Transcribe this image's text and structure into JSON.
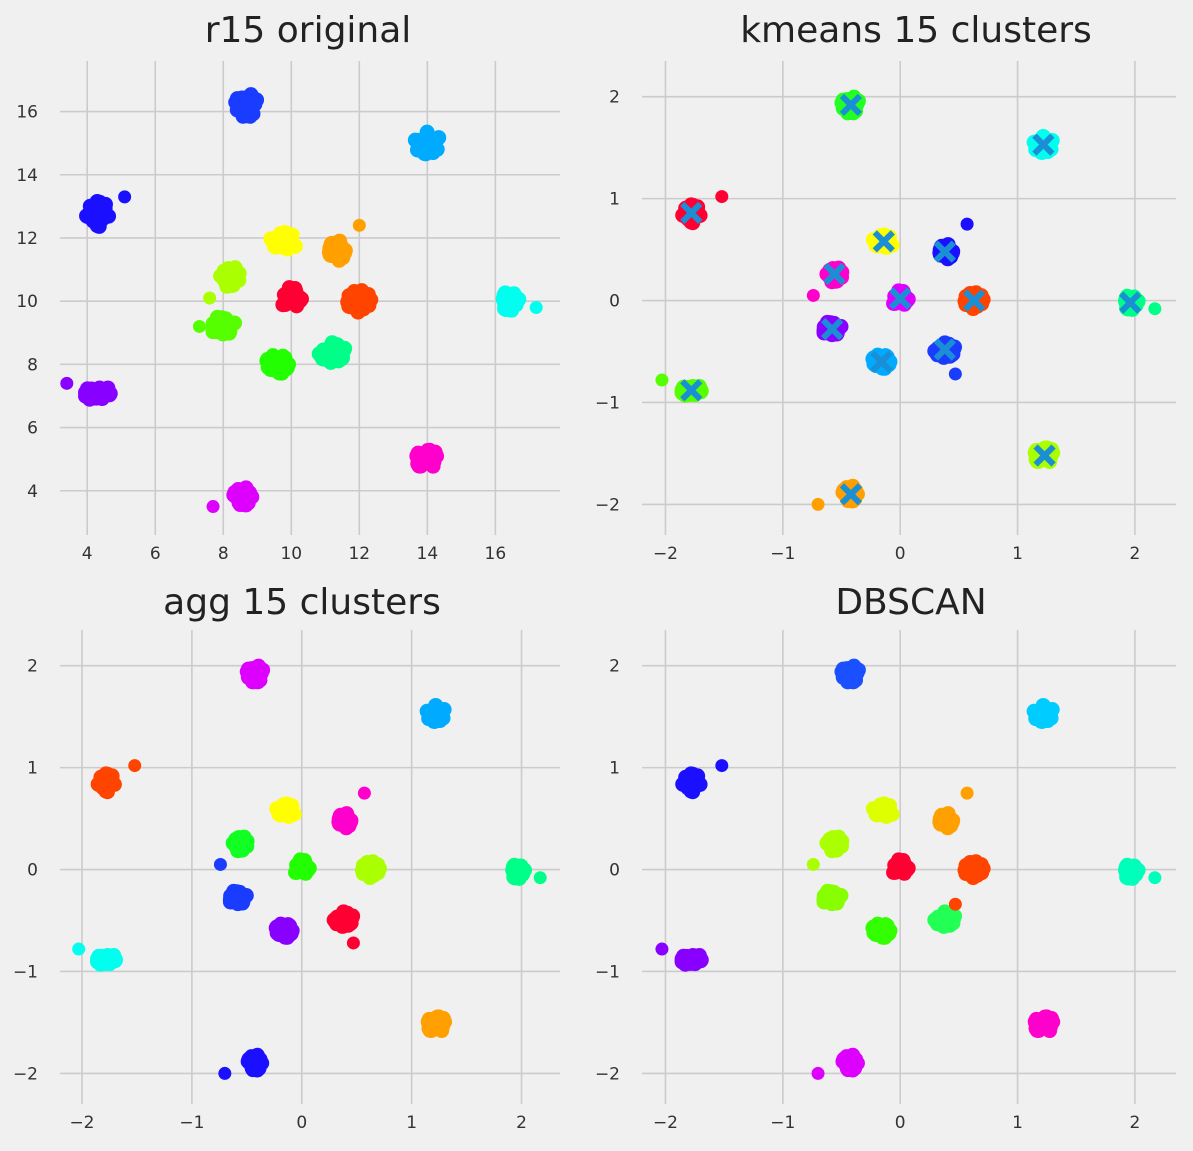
{
  "chart_data": [
    {
      "type": "scatter",
      "title": "r15 original",
      "xlabel": "",
      "ylabel": "",
      "xlim": [
        3.2,
        17.9
      ],
      "ylim": [
        2.6,
        17.6
      ],
      "xticks": [
        4,
        6,
        8,
        10,
        12,
        14,
        16
      ],
      "yticks": [
        4,
        6,
        8,
        10,
        12,
        14,
        16
      ],
      "grid": true,
      "clusters": [
        {
          "color": "#1a3cff",
          "center": [
            8.7,
            16.2
          ],
          "spread": [
            0.35,
            0.4
          ]
        },
        {
          "color": "#00aaff",
          "center": [
            14.0,
            15.0
          ],
          "spread": [
            0.4,
            0.35
          ]
        },
        {
          "color": "#1a10ff",
          "center": [
            4.3,
            12.8
          ],
          "spread": [
            0.35,
            0.45
          ]
        },
        {
          "color": "#ffff00",
          "center": [
            9.8,
            11.9
          ],
          "spread": [
            0.45,
            0.3
          ]
        },
        {
          "color": "#ffa000",
          "center": [
            11.3,
            11.6
          ],
          "spread": [
            0.3,
            0.35
          ]
        },
        {
          "color": "#aaff00",
          "center": [
            8.2,
            10.8
          ],
          "spread": [
            0.3,
            0.35
          ]
        },
        {
          "color": "#ff0033",
          "center": [
            10.0,
            10.1
          ],
          "spread": [
            0.35,
            0.35
          ]
        },
        {
          "color": "#ff4400",
          "center": [
            12.0,
            10.0
          ],
          "spread": [
            0.35,
            0.35
          ]
        },
        {
          "color": "#00ffee",
          "center": [
            16.4,
            10.0
          ],
          "spread": [
            0.3,
            0.3
          ]
        },
        {
          "color": "#55ff00",
          "center": [
            8.0,
            9.2
          ],
          "spread": [
            0.35,
            0.35
          ]
        },
        {
          "color": "#00ff88",
          "center": [
            11.2,
            8.4
          ],
          "spread": [
            0.4,
            0.35
          ]
        },
        {
          "color": "#22ff00",
          "center": [
            9.6,
            8.0
          ],
          "spread": [
            0.35,
            0.3
          ]
        },
        {
          "color": "#8800ff",
          "center": [
            4.3,
            7.1
          ],
          "spread": [
            0.4,
            0.25
          ]
        },
        {
          "color": "#ff00cc",
          "center": [
            14.0,
            5.0
          ],
          "spread": [
            0.35,
            0.3
          ]
        },
        {
          "color": "#dd00ff",
          "center": [
            8.6,
            3.8
          ],
          "spread": [
            0.3,
            0.3
          ]
        }
      ],
      "outliers": [
        {
          "color": "#1a10ff",
          "x": 5.1,
          "y": 13.3
        },
        {
          "color": "#ffa000",
          "x": 12.0,
          "y": 12.4
        },
        {
          "color": "#55ff00",
          "x": 7.3,
          "y": 9.2
        },
        {
          "color": "#aaff00",
          "x": 7.6,
          "y": 10.1
        },
        {
          "color": "#00ffee",
          "x": 17.2,
          "y": 9.8
        },
        {
          "color": "#8800ff",
          "x": 3.4,
          "y": 7.4
        },
        {
          "color": "#dd00ff",
          "x": 7.7,
          "y": 3.5
        }
      ]
    },
    {
      "type": "scatter",
      "title": "kmeans 15 clusters",
      "xlabel": "",
      "ylabel": "",
      "xlim": [
        -2.2,
        2.35
      ],
      "ylim": [
        -2.3,
        2.35
      ],
      "xticks": [
        -2,
        -1,
        0,
        1,
        2
      ],
      "xtick_labels": [
        "−2",
        "−1",
        "0",
        "1",
        "2"
      ],
      "yticks": [
        -2,
        -1,
        0,
        1,
        2
      ],
      "ytick_labels": [
        "−2",
        "−1",
        "0",
        "1",
        "2"
      ],
      "grid": true,
      "centroid_color": "#1a8fd6",
      "clusters": [
        {
          "color": "#22ff22",
          "center": [
            -0.42,
            1.92
          ],
          "spread": [
            0.08,
            0.09
          ]
        },
        {
          "color": "#00ffee",
          "center": [
            1.22,
            1.53
          ],
          "spread": [
            0.09,
            0.08
          ]
        },
        {
          "color": "#ff0033",
          "center": [
            -1.78,
            0.86
          ],
          "spread": [
            0.08,
            0.1
          ]
        },
        {
          "color": "#ffff00",
          "center": [
            -0.14,
            0.58
          ],
          "spread": [
            0.1,
            0.07
          ]
        },
        {
          "color": "#1a10ff",
          "center": [
            0.38,
            0.48
          ],
          "spread": [
            0.07,
            0.08
          ]
        },
        {
          "color": "#ff00cc",
          "center": [
            -0.56,
            0.26
          ],
          "spread": [
            0.07,
            0.08
          ]
        },
        {
          "color": "#dd00ff",
          "center": [
            0.0,
            0.02
          ],
          "spread": [
            0.08,
            0.08
          ]
        },
        {
          "color": "#ff4400",
          "center": [
            0.63,
            0.0
          ],
          "spread": [
            0.08,
            0.08
          ]
        },
        {
          "color": "#00ff88",
          "center": [
            1.96,
            -0.02
          ],
          "spread": [
            0.07,
            0.07
          ]
        },
        {
          "color": "#8800ff",
          "center": [
            -0.58,
            -0.28
          ],
          "spread": [
            0.08,
            0.08
          ]
        },
        {
          "color": "#1a3cff",
          "center": [
            0.38,
            -0.48
          ],
          "spread": [
            0.09,
            0.08
          ]
        },
        {
          "color": "#00aaff",
          "center": [
            -0.16,
            -0.6
          ],
          "spread": [
            0.08,
            0.07
          ]
        },
        {
          "color": "#55ff00",
          "center": [
            -1.78,
            -0.88
          ],
          "spread": [
            0.09,
            0.06
          ]
        },
        {
          "color": "#aaff00",
          "center": [
            1.23,
            -1.52
          ],
          "spread": [
            0.09,
            0.08
          ]
        },
        {
          "color": "#ffa000",
          "center": [
            -0.42,
            -1.9
          ],
          "spread": [
            0.07,
            0.08
          ]
        }
      ],
      "outliers": [
        {
          "color": "#ff0033",
          "x": -1.52,
          "y": 1.02
        },
        {
          "color": "#1a10ff",
          "x": 0.57,
          "y": 0.75
        },
        {
          "color": "#ff00cc",
          "x": -0.74,
          "y": 0.05
        },
        {
          "color": "#1a3cff",
          "x": 0.47,
          "y": -0.72
        },
        {
          "color": "#ffa000",
          "x": -0.7,
          "y": -2.0
        },
        {
          "color": "#00ff88",
          "x": 2.17,
          "y": -0.08
        },
        {
          "color": "#55ff00",
          "x": -2.03,
          "y": -0.78
        }
      ],
      "centroids": [
        [
          -0.42,
          1.92
        ],
        [
          1.22,
          1.53
        ],
        [
          -1.78,
          0.86
        ],
        [
          -0.14,
          0.58
        ],
        [
          0.38,
          0.48
        ],
        [
          -0.56,
          0.26
        ],
        [
          0.0,
          0.02
        ],
        [
          0.63,
          0.0
        ],
        [
          1.96,
          -0.02
        ],
        [
          -0.58,
          -0.28
        ],
        [
          0.38,
          -0.48
        ],
        [
          -0.16,
          -0.6
        ],
        [
          -1.78,
          -0.88
        ],
        [
          1.23,
          -1.52
        ],
        [
          -0.42,
          -1.9
        ]
      ]
    },
    {
      "type": "scatter",
      "title": "agg 15 clusters",
      "xlabel": "",
      "ylabel": "",
      "xlim": [
        -2.2,
        2.35
      ],
      "ylim": [
        -2.3,
        2.35
      ],
      "xticks": [
        -2,
        -1,
        0,
        1,
        2
      ],
      "xtick_labels": [
        "−2",
        "−1",
        "0",
        "1",
        "2"
      ],
      "yticks": [
        -2,
        -1,
        0,
        1,
        2
      ],
      "ytick_labels": [
        "−2",
        "−1",
        "0",
        "1",
        "2"
      ],
      "grid": true,
      "clusters": [
        {
          "color": "#dd00ff",
          "center": [
            -0.42,
            1.92
          ],
          "spread": [
            0.08,
            0.09
          ]
        },
        {
          "color": "#00aaff",
          "center": [
            1.22,
            1.53
          ],
          "spread": [
            0.09,
            0.08
          ]
        },
        {
          "color": "#ff4400",
          "center": [
            -1.78,
            0.86
          ],
          "spread": [
            0.08,
            0.1
          ]
        },
        {
          "color": "#ffff00",
          "center": [
            -0.14,
            0.58
          ],
          "spread": [
            0.1,
            0.07
          ]
        },
        {
          "color": "#ff00cc",
          "center": [
            0.38,
            0.48
          ],
          "spread": [
            0.07,
            0.08
          ]
        },
        {
          "color": "#11ff22",
          "center": [
            -0.56,
            0.26
          ],
          "spread": [
            0.07,
            0.08
          ]
        },
        {
          "color": "#22ff00",
          "center": [
            0.0,
            0.02
          ],
          "spread": [
            0.08,
            0.08
          ]
        },
        {
          "color": "#aaff00",
          "center": [
            0.63,
            0.0
          ],
          "spread": [
            0.08,
            0.08
          ]
        },
        {
          "color": "#00ff88",
          "center": [
            1.96,
            -0.02
          ],
          "spread": [
            0.07,
            0.07
          ]
        },
        {
          "color": "#1a3cff",
          "center": [
            -0.58,
            -0.28
          ],
          "spread": [
            0.08,
            0.08
          ]
        },
        {
          "color": "#ff0033",
          "center": [
            0.38,
            -0.48
          ],
          "spread": [
            0.09,
            0.08
          ]
        },
        {
          "color": "#8800ff",
          "center": [
            -0.16,
            -0.6
          ],
          "spread": [
            0.08,
            0.07
          ]
        },
        {
          "color": "#00ffee",
          "center": [
            -1.78,
            -0.88
          ],
          "spread": [
            0.09,
            0.06
          ]
        },
        {
          "color": "#ffa000",
          "center": [
            1.23,
            -1.52
          ],
          "spread": [
            0.09,
            0.08
          ]
        },
        {
          "color": "#1a10ff",
          "center": [
            -0.42,
            -1.9
          ],
          "spread": [
            0.07,
            0.08
          ]
        }
      ],
      "outliers": [
        {
          "color": "#ff4400",
          "x": -1.52,
          "y": 1.02
        },
        {
          "color": "#ff00cc",
          "x": 0.57,
          "y": 0.75
        },
        {
          "color": "#1a3cff",
          "x": -0.74,
          "y": 0.05
        },
        {
          "color": "#ff0033",
          "x": 0.47,
          "y": -0.72
        },
        {
          "color": "#1a10ff",
          "x": -0.7,
          "y": -2.0
        },
        {
          "color": "#00ff88",
          "x": 2.17,
          "y": -0.08
        },
        {
          "color": "#00ffee",
          "x": -2.03,
          "y": -0.78
        }
      ]
    },
    {
      "type": "scatter",
      "title": "DBSCAN",
      "xlabel": "",
      "ylabel": "",
      "xlim": [
        -2.2,
        2.35
      ],
      "ylim": [
        -2.3,
        2.35
      ],
      "xticks": [
        -2,
        -1,
        0,
        1,
        2
      ],
      "xtick_labels": [
        "−2",
        "−1",
        "0",
        "1",
        "2"
      ],
      "yticks": [
        -2,
        -1,
        0,
        1,
        2
      ],
      "ytick_labels": [
        "−2",
        "−1",
        "0",
        "1",
        "2"
      ],
      "grid": true,
      "clusters": [
        {
          "color": "#1a50ff",
          "center": [
            -0.42,
            1.92
          ],
          "spread": [
            0.08,
            0.09
          ]
        },
        {
          "color": "#00ccff",
          "center": [
            1.22,
            1.53
          ],
          "spread": [
            0.09,
            0.08
          ]
        },
        {
          "color": "#1a10ff",
          "center": [
            -1.78,
            0.86
          ],
          "spread": [
            0.08,
            0.1
          ]
        },
        {
          "color": "#ddff00",
          "center": [
            -0.14,
            0.58
          ],
          "spread": [
            0.1,
            0.07
          ]
        },
        {
          "color": "#ffa000",
          "center": [
            0.38,
            0.48
          ],
          "spread": [
            0.07,
            0.08
          ]
        },
        {
          "color": "#aaff00",
          "center": [
            -0.56,
            0.26
          ],
          "spread": [
            0.07,
            0.08
          ]
        },
        {
          "color": "#ff0033",
          "center": [
            0.0,
            0.02
          ],
          "spread": [
            0.08,
            0.08
          ]
        },
        {
          "color": "#ff4400",
          "center": [
            0.63,
            0.0
          ],
          "spread": [
            0.08,
            0.08
          ]
        },
        {
          "color": "#00ffbb",
          "center": [
            1.96,
            -0.02
          ],
          "spread": [
            0.07,
            0.07
          ]
        },
        {
          "color": "#88ff00",
          "center": [
            -0.58,
            -0.28
          ],
          "spread": [
            0.08,
            0.08
          ]
        },
        {
          "color": "#22ff55",
          "center": [
            0.38,
            -0.48
          ],
          "spread": [
            0.09,
            0.08
          ]
        },
        {
          "color": "#33ff00",
          "center": [
            -0.16,
            -0.6
          ],
          "spread": [
            0.08,
            0.07
          ]
        },
        {
          "color": "#8800ff",
          "center": [
            -1.78,
            -0.88
          ],
          "spread": [
            0.09,
            0.06
          ]
        },
        {
          "color": "#ff00cc",
          "center": [
            1.23,
            -1.52
          ],
          "spread": [
            0.09,
            0.08
          ]
        },
        {
          "color": "#dd00ff",
          "center": [
            -0.42,
            -1.9
          ],
          "spread": [
            0.07,
            0.08
          ]
        }
      ],
      "outliers": [
        {
          "color": "#1a10ff",
          "x": -1.52,
          "y": 1.02
        },
        {
          "color": "#ffa000",
          "x": 0.57,
          "y": 0.75
        },
        {
          "color": "#aaff00",
          "x": -0.74,
          "y": 0.05
        },
        {
          "color": "#ff4400",
          "x": 0.47,
          "y": -0.34
        },
        {
          "color": "#dd00ff",
          "x": -0.7,
          "y": -2.0
        },
        {
          "color": "#00ffbb",
          "x": 2.17,
          "y": -0.08
        },
        {
          "color": "#8800ff",
          "x": -2.03,
          "y": -0.78
        }
      ]
    }
  ]
}
